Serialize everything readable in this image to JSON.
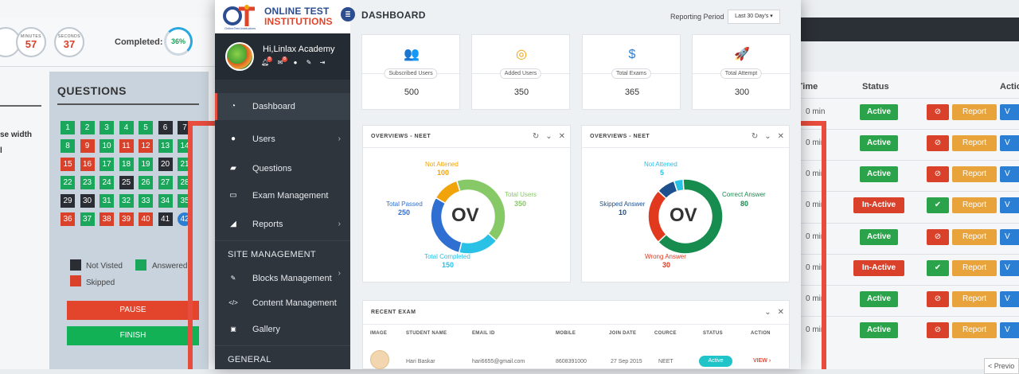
{
  "exam_bg": {
    "timers": [
      {
        "label": "",
        "value": ""
      },
      {
        "label": "MINUTES",
        "value": "57"
      },
      {
        "label": "SECONDS",
        "value": "37"
      }
    ],
    "completed_label": "Completed:",
    "completed_value": "36%",
    "side_text_1": "se width",
    "side_text_2": "l",
    "questions_title": "QUESTIONS",
    "questions": [
      {
        "n": "1",
        "s": "a"
      },
      {
        "n": "2",
        "s": "a"
      },
      {
        "n": "3",
        "s": "a"
      },
      {
        "n": "4",
        "s": "a"
      },
      {
        "n": "5",
        "s": "a"
      },
      {
        "n": "6",
        "s": "n"
      },
      {
        "n": "7",
        "s": "n"
      },
      {
        "n": "8",
        "s": "a"
      },
      {
        "n": "9",
        "s": "s"
      },
      {
        "n": "10",
        "s": "a"
      },
      {
        "n": "11",
        "s": "s"
      },
      {
        "n": "12",
        "s": "s"
      },
      {
        "n": "13",
        "s": "a"
      },
      {
        "n": "14",
        "s": "a"
      },
      {
        "n": "15",
        "s": "s"
      },
      {
        "n": "16",
        "s": "s"
      },
      {
        "n": "17",
        "s": "a"
      },
      {
        "n": "18",
        "s": "a"
      },
      {
        "n": "19",
        "s": "a"
      },
      {
        "n": "20",
        "s": "n"
      },
      {
        "n": "21",
        "s": "a"
      },
      {
        "n": "22",
        "s": "a"
      },
      {
        "n": "23",
        "s": "a"
      },
      {
        "n": "24",
        "s": "a"
      },
      {
        "n": "25",
        "s": "n"
      },
      {
        "n": "26",
        "s": "a"
      },
      {
        "n": "27",
        "s": "a"
      },
      {
        "n": "28",
        "s": "a"
      },
      {
        "n": "29",
        "s": "n"
      },
      {
        "n": "30",
        "s": "n"
      },
      {
        "n": "31",
        "s": "a"
      },
      {
        "n": "32",
        "s": "a"
      },
      {
        "n": "33",
        "s": "a"
      },
      {
        "n": "34",
        "s": "a"
      },
      {
        "n": "35",
        "s": "a"
      },
      {
        "n": "36",
        "s": "s"
      },
      {
        "n": "37",
        "s": "a"
      },
      {
        "n": "38",
        "s": "s"
      },
      {
        "n": "39",
        "s": "s"
      },
      {
        "n": "40",
        "s": "s"
      },
      {
        "n": "41",
        "s": "n"
      },
      {
        "n": "42",
        "s": "c"
      }
    ],
    "legend_not_visited": "Not Visted",
    "legend_answered": "Answered",
    "legend_skipped": "Skipped",
    "pause_label": "PAUSE",
    "finish_label": "FINISH"
  },
  "table_bg": {
    "col_time": "n Time",
    "col_status": "Status",
    "col_action": "Actio",
    "rows": [
      {
        "time": "0 min",
        "status": "Active",
        "state": "active",
        "action_icon": "⊘"
      },
      {
        "time": "0 min",
        "status": "Active",
        "state": "active",
        "action_icon": "⊘"
      },
      {
        "time": "0 min",
        "status": "Active",
        "state": "active",
        "action_icon": "⊘"
      },
      {
        "time": "0 min",
        "status": "In-Active",
        "state": "inactive",
        "action_icon": "✔"
      },
      {
        "time": "0 min",
        "status": "Active",
        "state": "active",
        "action_icon": "⊘"
      },
      {
        "time": "0 min",
        "status": "In-Active",
        "state": "inactive",
        "action_icon": "✔"
      },
      {
        "time": "0 min",
        "status": "Active",
        "state": "active",
        "action_icon": "⊘"
      },
      {
        "time": "0 min",
        "status": "Active",
        "state": "active",
        "action_icon": "⊘"
      }
    ],
    "report_label": "Report",
    "prev_label": "< Previo"
  },
  "app": {
    "logo_line1": "ONLINE TEST",
    "logo_line2": "INSTITUTIONS",
    "logo_tagline": "OnlineTest Institutions",
    "greeting": "Hi,Linlax Academy",
    "notif_badge": "8",
    "mail_badge": "8"
  },
  "sidebar": {
    "items": [
      {
        "label": "Dashboard",
        "icon": "gauge-icon",
        "glyph": "◔",
        "has_chevron": false,
        "active": true
      },
      {
        "label": "Users",
        "icon": "user-icon",
        "glyph": "●",
        "has_chevron": true,
        "active": false
      },
      {
        "label": "Questions",
        "icon": "book-icon",
        "glyph": "▰",
        "has_chevron": false,
        "active": false
      },
      {
        "label": "Exam Management",
        "icon": "laptop-icon",
        "glyph": "▭",
        "has_chevron": false,
        "active": false
      },
      {
        "label": "Reports",
        "icon": "chart-icon",
        "glyph": "◢",
        "has_chevron": true,
        "active": false
      }
    ],
    "section_site": "SITE MANAGEMENT",
    "site_items": [
      {
        "label": "Blocks Management",
        "icon": "edit-icon",
        "glyph": "✎",
        "has_chevron": true
      },
      {
        "label": "Content Management",
        "icon": "code-icon",
        "glyph": "</>",
        "has_chevron": false
      },
      {
        "label": "Gallery",
        "icon": "image-icon",
        "glyph": "▣",
        "has_chevron": false
      }
    ],
    "section_general": "GENERAL"
  },
  "header": {
    "title": "DASHBOARD",
    "reporting_label": "Reporting Period",
    "period_value": "Last 30 Day's ▾"
  },
  "stats": [
    {
      "label": "Subscribed Users",
      "value": "500",
      "icon": "users-icon",
      "glyph": "👥",
      "color": "#2ba6de"
    },
    {
      "label": "Added Users",
      "value": "350",
      "icon": "target-icon",
      "glyph": "◎",
      "color": "#f0a30a"
    },
    {
      "label": "Total Exams",
      "value": "365",
      "icon": "dollar-house-icon",
      "glyph": "$",
      "color": "#2c7fd4"
    },
    {
      "label": "Total Attempt",
      "value": "300",
      "icon": "rocket-icon",
      "glyph": "🚀",
      "color": "#3aa64a"
    }
  ],
  "overview_left": {
    "title": "OVERVIEWS - NEET",
    "center": "OV",
    "slices": [
      {
        "label": "Not Attened",
        "value": 100,
        "color": "#f0a30a"
      },
      {
        "label": "Total Users",
        "value": 350,
        "color": "#86c966"
      },
      {
        "label": "Total Completed",
        "value": 150,
        "color": "#29c1e6"
      },
      {
        "label": "Total Passed",
        "value": 250,
        "color": "#2e6fd1"
      }
    ]
  },
  "overview_right": {
    "title": "OVERVIEWS - NEET",
    "center": "OV",
    "slices": [
      {
        "label": "Not Attened",
        "value": 5,
        "color": "#29c1e6"
      },
      {
        "label": "Correct Answer",
        "value": 80,
        "color": "#178c4f"
      },
      {
        "label": "Wrong Answer",
        "value": 30,
        "color": "#e0391e"
      },
      {
        "label": "Skipped Answer",
        "value": 10,
        "color": "#1c4f8c"
      }
    ]
  },
  "recent_exam": {
    "title": "RECENT EXAM",
    "columns": [
      "IMAGE",
      "STUDENT NAME",
      "EMAIL ID",
      "MOBILE",
      "JOIN DATE",
      "COURCE",
      "STATUS",
      "ACTION"
    ],
    "row": {
      "name": "Hari Baskar",
      "email": "hari6655@gmail.com",
      "mobile": "8608391000",
      "join_date": "27 Sep 2015",
      "course": "NEET",
      "status": "Active",
      "action": "VIEW ›"
    }
  }
}
